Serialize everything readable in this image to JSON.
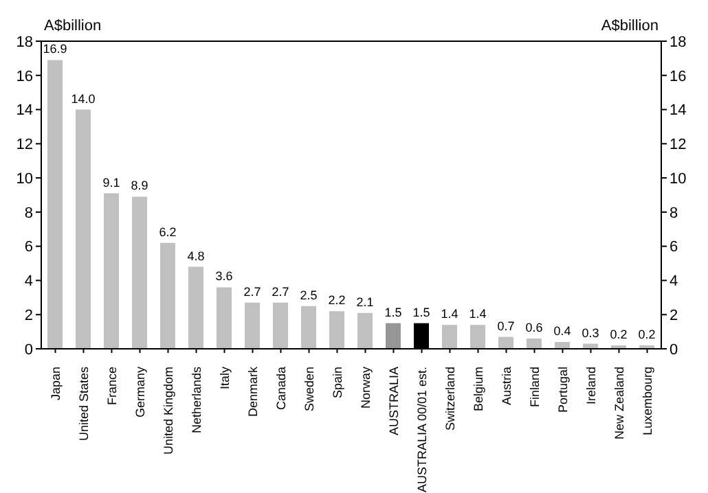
{
  "chart_data": {
    "type": "bar",
    "ylabel": "A$billion",
    "y2label": "A$billion",
    "categories": [
      "Japan",
      "United States",
      "France",
      "Germany",
      "United Kingdom",
      "Netherlands",
      "Italy",
      "Denmark",
      "Canada",
      "Sweden",
      "Spain",
      "Norway",
      "AUSTRALIA",
      "AUSTRALIA 00/01 est.",
      "Switzerland",
      "Belgium",
      "Austria",
      "Finland",
      "Portugal",
      "Ireland",
      "New Zealand",
      "Luxembourg"
    ],
    "values": [
      16.9,
      14.0,
      9.1,
      8.9,
      6.2,
      4.8,
      3.6,
      2.7,
      2.7,
      2.5,
      2.2,
      2.1,
      1.5,
      1.5,
      1.4,
      1.4,
      0.7,
      0.6,
      0.4,
      0.3,
      0.2,
      0.2
    ],
    "value_labels": [
      "16.9",
      "14.0",
      "9.1",
      "8.9",
      "6.2",
      "4.8",
      "3.6",
      "2.7",
      "2.7",
      "2.5",
      "2.2",
      "2.1",
      "1.5",
      "1.5",
      "1.4",
      "1.4",
      "0.7",
      "0.6",
      "0.4",
      "0.3",
      "0.2",
      "0.2"
    ],
    "colors": [
      "#c0c0c0",
      "#c0c0c0",
      "#c0c0c0",
      "#c0c0c0",
      "#c0c0c0",
      "#c0c0c0",
      "#c0c0c0",
      "#c0c0c0",
      "#c0c0c0",
      "#c0c0c0",
      "#c0c0c0",
      "#c0c0c0",
      "#969696",
      "#000000",
      "#c0c0c0",
      "#c0c0c0",
      "#c0c0c0",
      "#c0c0c0",
      "#c0c0c0",
      "#c0c0c0",
      "#c0c0c0",
      "#c0c0c0"
    ],
    "ylim": [
      0,
      18
    ],
    "yticks": [
      0,
      2,
      4,
      6,
      8,
      10,
      12,
      14,
      16,
      18
    ],
    "y2lim": [
      0,
      18
    ],
    "y2ticks": [
      0,
      2,
      4,
      6,
      8,
      10,
      12,
      14,
      16,
      18
    ],
    "grid": false,
    "legend": false
  }
}
